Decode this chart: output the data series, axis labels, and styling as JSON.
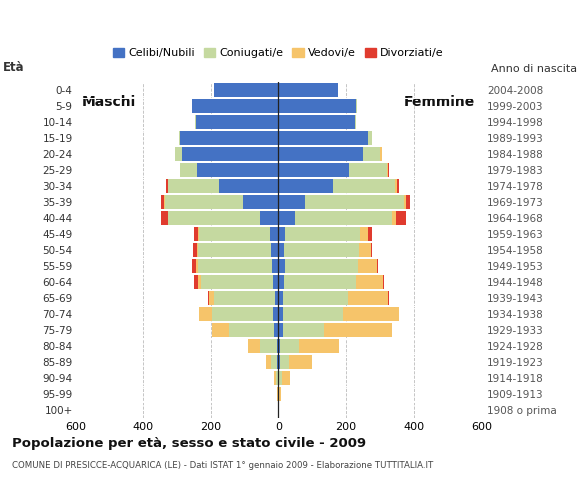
{
  "age_groups": [
    "100+",
    "95-99",
    "90-94",
    "85-89",
    "80-84",
    "75-79",
    "70-74",
    "65-69",
    "60-64",
    "55-59",
    "50-54",
    "45-49",
    "40-44",
    "35-39",
    "30-34",
    "25-29",
    "20-24",
    "15-19",
    "10-14",
    "5-9",
    "0-4"
  ],
  "birth_years": [
    "1908 o prima",
    "1909-1913",
    "1914-1918",
    "1919-1923",
    "1924-1928",
    "1929-1933",
    "1934-1938",
    "1939-1943",
    "1944-1948",
    "1949-1953",
    "1954-1958",
    "1959-1963",
    "1964-1968",
    "1969-1973",
    "1974-1978",
    "1979-1983",
    "1984-1988",
    "1989-1993",
    "1994-1998",
    "1999-2003",
    "2004-2008"
  ],
  "males_celibe": [
    0,
    0,
    2,
    3,
    5,
    12,
    15,
    10,
    15,
    18,
    22,
    25,
    55,
    105,
    175,
    240,
    285,
    290,
    245,
    255,
    190
  ],
  "males_coniugato": [
    0,
    2,
    5,
    20,
    50,
    135,
    180,
    180,
    215,
    220,
    215,
    210,
    270,
    230,
    150,
    50,
    20,
    5,
    2,
    0,
    0
  ],
  "males_vedovo": [
    0,
    2,
    5,
    15,
    35,
    50,
    40,
    15,
    8,
    5,
    3,
    2,
    2,
    2,
    0,
    0,
    0,
    0,
    0,
    0,
    0
  ],
  "males_divorziato": [
    0,
    0,
    0,
    0,
    0,
    0,
    0,
    3,
    12,
    12,
    12,
    12,
    20,
    10,
    8,
    2,
    0,
    0,
    0,
    0,
    0
  ],
  "females_nubile": [
    0,
    0,
    2,
    5,
    5,
    15,
    15,
    15,
    18,
    20,
    18,
    20,
    50,
    80,
    160,
    210,
    250,
    265,
    225,
    230,
    175
  ],
  "females_coniugata": [
    0,
    2,
    8,
    25,
    55,
    120,
    175,
    190,
    210,
    215,
    220,
    220,
    285,
    290,
    185,
    110,
    50,
    12,
    4,
    2,
    2
  ],
  "females_vedova": [
    2,
    5,
    25,
    70,
    120,
    200,
    165,
    120,
    80,
    55,
    35,
    25,
    12,
    8,
    5,
    5,
    5,
    0,
    0,
    0,
    0
  ],
  "females_divorziata": [
    0,
    0,
    0,
    0,
    0,
    0,
    2,
    2,
    5,
    5,
    5,
    12,
    30,
    10,
    5,
    2,
    2,
    0,
    0,
    0,
    0
  ],
  "color_celibe": "#4472c4",
  "color_coniugato": "#c5d9a0",
  "color_vedovo": "#f6c46a",
  "color_divorziato": "#e03b2e",
  "title": "Popolazione per età, sesso e stato civile - 2009",
  "subtitle": "COMUNE DI PRESICCE-ACQUARICA (LE) - Dati ISTAT 1° gennaio 2009 - Elaborazione TUTTITALIA.IT",
  "xlim": 600,
  "bg_color": "#ffffff",
  "grid_color": "#bbbbbb"
}
